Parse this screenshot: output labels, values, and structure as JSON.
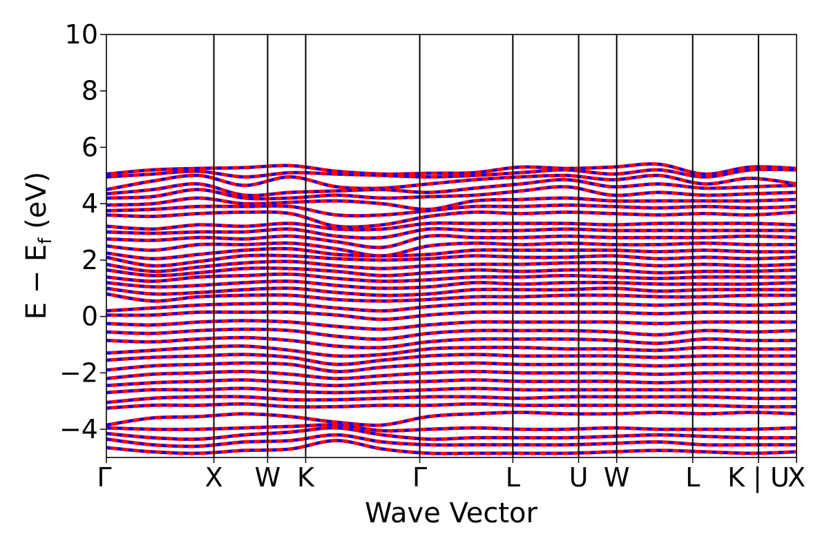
{
  "chart_data": {
    "type": "line",
    "title": "",
    "xlabel": "Wave Vector",
    "ylabel_main": "E − E",
    "ylabel_sub": "f",
    "ylabel_unit": "(eV)",
    "ylim": [
      -5,
      10
    ],
    "yticks": [
      -4,
      -2,
      0,
      2,
      4,
      6,
      8,
      10
    ],
    "ytick_labels": [
      "−4",
      "−2",
      "0",
      "2",
      "4",
      "6",
      "8",
      "10"
    ],
    "kpath": [
      {
        "label": "Γ",
        "x": 0.0
      },
      {
        "label": "X",
        "x": 1.0
      },
      {
        "label": "W",
        "x": 1.5
      },
      {
        "label": "K",
        "x": 1.854
      },
      {
        "label": "Γ",
        "x": 2.915
      },
      {
        "label": "L",
        "x": 3.781
      },
      {
        "label": "U",
        "x": 4.393
      },
      {
        "label": "W",
        "x": 4.747
      },
      {
        "label": "L",
        "x": 5.454
      },
      {
        "label": "K | U",
        "x": 6.066
      },
      {
        "label": "X",
        "x": 6.42
      }
    ],
    "series": [
      {
        "color": "#ff0000",
        "style": "solid"
      },
      {
        "color": "#0000ff",
        "style": "dashed"
      }
    ],
    "bands": [
      [
        5.05,
        5.2,
        5.25,
        5.28,
        5.35,
        5.15,
        5.05,
        5.08,
        5.1,
        5.3,
        5.25,
        5.3,
        5.4,
        5.05,
        5.3,
        5.25
      ],
      [
        4.95,
        5.05,
        5.15,
        4.95,
        5.1,
        5.05,
        5.0,
        4.95,
        5.0,
        5.1,
        5.2,
        5.05,
        5.2,
        4.95,
        5.2,
        5.2
      ],
      [
        4.5,
        4.8,
        5.0,
        4.65,
        4.95,
        4.6,
        4.55,
        4.7,
        4.85,
        4.95,
        5.0,
        4.85,
        5.0,
        4.7,
        4.9,
        4.7
      ],
      [
        4.35,
        4.5,
        4.7,
        4.3,
        4.4,
        4.45,
        4.5,
        4.4,
        4.55,
        4.7,
        4.85,
        4.6,
        4.7,
        4.55,
        4.6,
        4.65
      ],
      [
        4.2,
        4.25,
        4.5,
        4.2,
        4.2,
        4.3,
        4.2,
        4.25,
        4.3,
        4.45,
        4.6,
        4.3,
        4.4,
        4.3,
        4.35,
        4.4
      ],
      [
        3.95,
        4.0,
        4.2,
        4.0,
        4.05,
        4.1,
        4.0,
        3.8,
        4.1,
        4.15,
        4.2,
        4.1,
        4.1,
        4.1,
        4.1,
        4.15
      ],
      [
        3.75,
        3.8,
        3.9,
        3.9,
        3.9,
        3.6,
        3.6,
        3.75,
        3.9,
        3.9,
        3.95,
        3.9,
        3.85,
        3.9,
        3.85,
        3.9
      ],
      [
        3.6,
        3.55,
        3.65,
        3.7,
        3.65,
        3.2,
        3.25,
        3.55,
        3.7,
        3.65,
        3.7,
        3.65,
        3.6,
        3.65,
        3.6,
        3.7
      ],
      [
        3.2,
        3.1,
        3.25,
        3.2,
        3.3,
        3.1,
        3.1,
        3.3,
        3.3,
        3.3,
        3.3,
        3.25,
        3.3,
        3.3,
        3.3,
        3.25
      ],
      [
        3.0,
        2.95,
        3.0,
        3.0,
        3.1,
        2.85,
        2.8,
        3.1,
        3.05,
        3.05,
        3.1,
        3.05,
        3.05,
        3.05,
        3.05,
        3.05
      ],
      [
        2.75,
        2.7,
        2.8,
        2.75,
        2.85,
        2.65,
        2.45,
        2.85,
        2.8,
        2.8,
        2.85,
        2.8,
        2.8,
        2.8,
        2.85,
        2.8
      ],
      [
        2.5,
        2.35,
        2.55,
        2.55,
        2.6,
        2.4,
        2.15,
        2.5,
        2.6,
        2.55,
        2.6,
        2.55,
        2.55,
        2.6,
        2.55,
        2.55
      ],
      [
        2.25,
        2.05,
        2.2,
        2.35,
        2.4,
        2.2,
        2.15,
        2.2,
        2.35,
        2.35,
        2.35,
        2.35,
        2.3,
        2.35,
        2.3,
        2.3
      ],
      [
        2.1,
        1.8,
        1.95,
        2.15,
        2.15,
        2.05,
        2.0,
        2.05,
        2.15,
        2.1,
        2.1,
        2.15,
        2.05,
        2.1,
        2.05,
        2.1
      ],
      [
        1.85,
        1.6,
        1.75,
        1.9,
        1.95,
        1.8,
        1.7,
        1.8,
        1.85,
        1.85,
        1.9,
        1.9,
        1.8,
        1.85,
        1.8,
        1.85
      ],
      [
        1.65,
        1.45,
        1.55,
        1.7,
        1.7,
        1.6,
        1.45,
        1.55,
        1.65,
        1.6,
        1.65,
        1.65,
        1.55,
        1.6,
        1.6,
        1.65
      ],
      [
        1.4,
        1.25,
        1.4,
        1.45,
        1.5,
        1.35,
        1.25,
        1.3,
        1.4,
        1.4,
        1.45,
        1.4,
        1.35,
        1.4,
        1.4,
        1.4
      ],
      [
        1.2,
        1.05,
        1.1,
        1.2,
        1.25,
        1.1,
        1.0,
        1.05,
        1.2,
        1.15,
        1.2,
        1.2,
        1.15,
        1.15,
        1.15,
        1.2
      ],
      [
        1.0,
        0.8,
        0.85,
        0.95,
        1.0,
        0.85,
        0.75,
        0.8,
        0.95,
        0.95,
        0.95,
        1.0,
        0.9,
        0.95,
        0.95,
        0.95
      ],
      [
        0.8,
        0.55,
        0.7,
        0.75,
        0.75,
        0.6,
        0.55,
        0.6,
        0.7,
        0.7,
        0.75,
        0.75,
        0.7,
        0.7,
        0.75,
        0.75
      ],
      [
        0.2,
        0.3,
        0.4,
        0.45,
        0.45,
        0.3,
        0.2,
        0.35,
        0.45,
        0.45,
        0.45,
        0.45,
        0.4,
        0.45,
        0.4,
        0.45
      ],
      [
        0.05,
        0.05,
        0.15,
        0.15,
        0.15,
        0.05,
        -0.1,
        0.05,
        0.15,
        0.15,
        0.15,
        0.15,
        0.1,
        0.15,
        0.15,
        0.15
      ],
      [
        -0.25,
        -0.3,
        -0.2,
        -0.15,
        -0.2,
        -0.35,
        -0.45,
        -0.3,
        -0.2,
        -0.2,
        -0.2,
        -0.2,
        -0.25,
        -0.2,
        -0.2,
        -0.2
      ],
      [
        -0.55,
        -0.6,
        -0.5,
        -0.45,
        -0.5,
        -0.7,
        -0.8,
        -0.6,
        -0.5,
        -0.5,
        -0.5,
        -0.55,
        -0.65,
        -0.5,
        -0.55,
        -0.5
      ],
      [
        -0.85,
        -0.9,
        -0.8,
        -0.75,
        -0.85,
        -1.05,
        -1.1,
        -0.9,
        -0.8,
        -0.8,
        -0.8,
        -0.85,
        -0.95,
        -0.8,
        -0.85,
        -0.85
      ],
      [
        -1.3,
        -1.2,
        -1.1,
        -1.05,
        -1.2,
        -1.4,
        -1.35,
        -1.15,
        -1.1,
        -1.1,
        -1.15,
        -1.15,
        -1.2,
        -1.1,
        -1.15,
        -1.15
      ],
      [
        -1.55,
        -1.45,
        -1.4,
        -1.35,
        -1.45,
        -1.7,
        -1.55,
        -1.4,
        -1.35,
        -1.4,
        -1.4,
        -1.4,
        -1.45,
        -1.4,
        -1.4,
        -1.4
      ],
      [
        -1.9,
        -1.75,
        -1.7,
        -1.65,
        -1.7,
        -1.95,
        -1.8,
        -1.7,
        -1.65,
        -1.7,
        -1.7,
        -1.7,
        -1.75,
        -1.7,
        -1.7,
        -1.7
      ],
      [
        -2.2,
        -2.05,
        -2.0,
        -1.95,
        -2.05,
        -2.2,
        -2.1,
        -2.0,
        -1.95,
        -2.0,
        -2.0,
        -2.0,
        -2.05,
        -2.0,
        -2.0,
        -2.0
      ],
      [
        -2.45,
        -2.35,
        -2.3,
        -2.25,
        -2.35,
        -2.45,
        -2.35,
        -2.3,
        -2.25,
        -2.3,
        -2.3,
        -2.3,
        -2.35,
        -2.3,
        -2.3,
        -2.3
      ],
      [
        -2.7,
        -2.6,
        -2.6,
        -2.55,
        -2.65,
        -2.7,
        -2.65,
        -2.6,
        -2.55,
        -2.6,
        -2.6,
        -2.6,
        -2.6,
        -2.6,
        -2.6,
        -2.6
      ],
      [
        -3.05,
        -2.9,
        -2.85,
        -2.85,
        -2.95,
        -2.95,
        -2.9,
        -2.85,
        -2.85,
        -2.9,
        -2.85,
        -2.85,
        -2.85,
        -2.85,
        -2.9,
        -2.9
      ],
      [
        -3.25,
        -3.15,
        -3.15,
        -3.1,
        -3.2,
        -3.2,
        -3.15,
        -3.15,
        -3.1,
        -3.15,
        -3.15,
        -3.15,
        -3.15,
        -3.15,
        -3.2,
        -3.2
      ],
      [
        -3.85,
        -3.6,
        -3.55,
        -3.45,
        -3.55,
        -3.75,
        -3.85,
        -3.55,
        -3.45,
        -3.4,
        -3.45,
        -3.45,
        -3.4,
        -3.45,
        -3.4,
        -3.45
      ],
      [
        -3.95,
        -4.0,
        -4.0,
        -3.95,
        -3.9,
        -3.85,
        -4.05,
        -4.0,
        -3.95,
        -4.0,
        -4.0,
        -3.95,
        -4.0,
        -4.0,
        -4.0,
        -3.95
      ],
      [
        -4.15,
        -4.3,
        -4.35,
        -4.2,
        -4.1,
        -3.95,
        -4.2,
        -4.35,
        -4.3,
        -4.3,
        -4.3,
        -4.25,
        -4.2,
        -4.25,
        -4.3,
        -4.3
      ],
      [
        -4.35,
        -4.55,
        -4.6,
        -4.45,
        -4.4,
        -4.2,
        -4.45,
        -4.55,
        -4.55,
        -4.55,
        -4.55,
        -4.5,
        -4.45,
        -4.55,
        -4.55,
        -4.55
      ],
      [
        -4.65,
        -4.8,
        -4.85,
        -4.75,
        -4.7,
        -4.4,
        -4.7,
        -4.85,
        -4.85,
        -4.85,
        -4.85,
        -4.8,
        -4.75,
        -4.8,
        -4.85,
        -4.8
      ]
    ]
  }
}
